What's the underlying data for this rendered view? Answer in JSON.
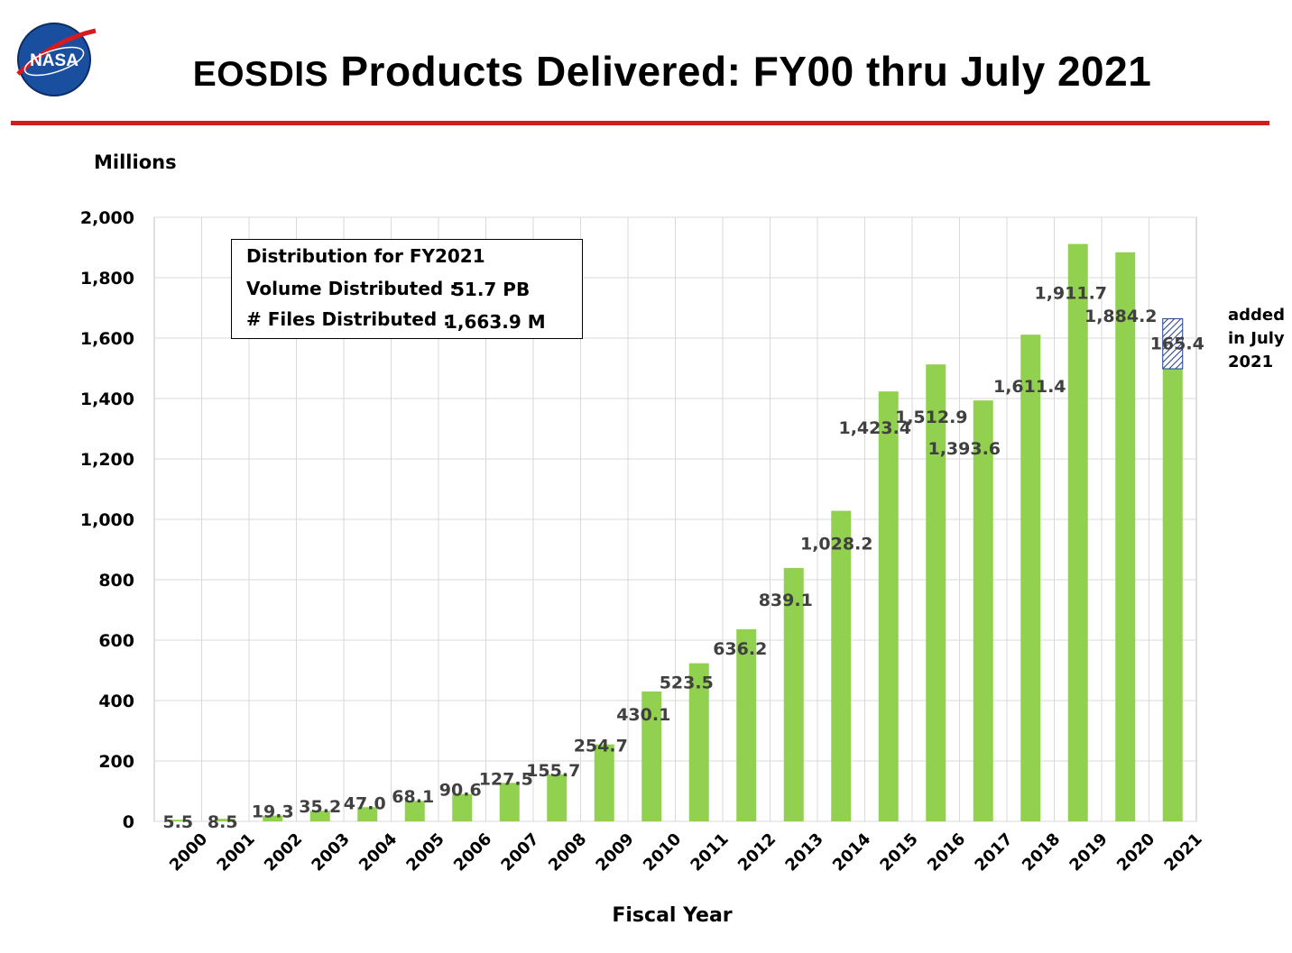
{
  "header": {
    "title_prefix": "EOSDIS",
    "title_rest": " Products Delivered: FY00 thru July 2021",
    "logo_text": "NASA"
  },
  "colors": {
    "bar": "#92d050",
    "accent_rule": "#cc1f1f",
    "hatch": "#1f3f8f",
    "grid": "#d9d9d9"
  },
  "info_box": {
    "heading": "Distribution for FY2021",
    "volume_label": "Volume Distributed :",
    "volume_value": "51.7 PB",
    "files_label": "# Files Distributed :",
    "files_value": "1,663.9 M"
  },
  "note": "added in July 2021",
  "chart_data": {
    "type": "bar",
    "ylabel": "Millions",
    "xlabel": "Fiscal Year",
    "ylim": [
      0,
      2000
    ],
    "yticks": [
      0,
      200,
      400,
      600,
      800,
      1000,
      1200,
      1400,
      1600,
      1800,
      2000
    ],
    "ytick_labels": [
      "0",
      "200",
      "400",
      "600",
      "800",
      "1,000",
      "1,200",
      "1,400",
      "1,600",
      "1,800",
      "2,000"
    ],
    "grid": true,
    "categories": [
      "2000",
      "2001",
      "2002",
      "2003",
      "2004",
      "2005",
      "2006",
      "2007",
      "2008",
      "2009",
      "2010",
      "2011",
      "2012",
      "2013",
      "2014",
      "2015",
      "2016",
      "2017",
      "2018",
      "2019",
      "2020",
      "2021"
    ],
    "values": [
      5.5,
      8.5,
      19.3,
      35.2,
      47.0,
      68.1,
      90.6,
      127.5,
      155.7,
      254.7,
      430.1,
      523.5,
      636.2,
      839.1,
      1028.2,
      1423.4,
      1512.9,
      1393.6,
      1611.4,
      1911.7,
      1884.2,
      1498.5
    ],
    "labels": [
      "5.5",
      "8.5",
      "19.3",
      "35.2",
      "47.0",
      "68.1",
      "90.6",
      "127.5",
      "155.7",
      "254.7",
      "430.1",
      "523.5",
      "636.2",
      "839.1",
      "1,028.2",
      "1,423.4",
      "1,512.9",
      "1,393.6",
      "1,611.4",
      "1,911.7",
      "1,884.2",
      ""
    ],
    "added_segment": {
      "category": "2021",
      "value": 165.4,
      "label": "165.4",
      "style": "hatched"
    }
  }
}
